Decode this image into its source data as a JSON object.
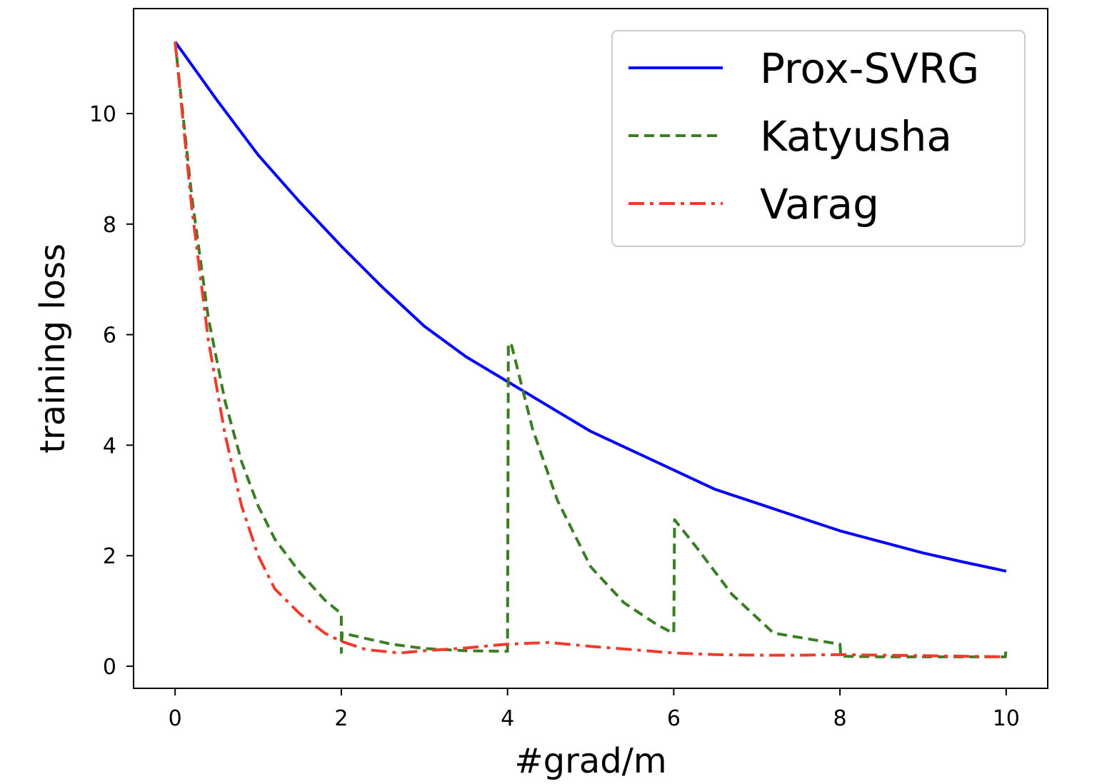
{
  "chart_data": {
    "type": "line",
    "title": "",
    "xlabel": "#grad/m",
    "ylabel": "training loss",
    "xlim": [
      -0.5,
      10.5
    ],
    "ylim": [
      -0.4,
      11.9
    ],
    "xticks": [
      0,
      2,
      4,
      6,
      8,
      10
    ],
    "yticks": [
      0,
      2,
      4,
      6,
      8,
      10
    ],
    "grid": false,
    "legend_position": "top-right",
    "series": [
      {
        "name": "Prox-SVRG",
        "color": "#0000ff",
        "style": "solid",
        "x": [
          0,
          0.5,
          1,
          1.5,
          2,
          2.5,
          3,
          3.5,
          4,
          4.5,
          5,
          5.5,
          6,
          6.5,
          7,
          7.5,
          8,
          8.5,
          9,
          9.5,
          10
        ],
        "y": [
          11.3,
          10.25,
          9.25,
          8.4,
          7.6,
          6.85,
          6.15,
          5.6,
          5.15,
          4.7,
          4.25,
          3.9,
          3.55,
          3.2,
          2.95,
          2.7,
          2.45,
          2.25,
          2.05,
          1.88,
          1.72
        ]
      },
      {
        "name": "Katyusha",
        "color": "#3a7d22",
        "style": "dashed",
        "x": [
          0,
          0.2,
          0.4,
          0.6,
          0.8,
          1.0,
          1.2,
          1.5,
          1.8,
          2.0,
          2.0,
          2.01,
          2.3,
          2.6,
          3.0,
          3.5,
          3.99,
          4.0,
          4.01,
          4.05,
          4.3,
          4.6,
          5.0,
          5.4,
          5.8,
          5.99,
          6.0,
          6.01,
          6.3,
          6.7,
          7.2,
          7.99,
          8.0,
          8.01,
          8.5,
          9.0,
          9.5,
          9.99,
          10.0
        ],
        "y": [
          11.3,
          8.5,
          6.3,
          4.8,
          3.7,
          2.9,
          2.3,
          1.7,
          1.2,
          0.95,
          0.25,
          0.6,
          0.5,
          0.4,
          0.32,
          0.28,
          0.27,
          0.27,
          5.85,
          5.8,
          4.3,
          3.0,
          1.8,
          1.15,
          0.75,
          0.6,
          0.6,
          2.65,
          2.1,
          1.3,
          0.6,
          0.4,
          0.4,
          0.18,
          0.17,
          0.17,
          0.17,
          0.17,
          0.35
        ]
      },
      {
        "name": "Varag",
        "color": "#ee3b2b",
        "style": "dashdot",
        "x": [
          0,
          0.2,
          0.4,
          0.6,
          0.8,
          1.0,
          1.2,
          1.5,
          1.8,
          2.0,
          2.3,
          2.7,
          3.0,
          3.5,
          4.0,
          4.5,
          5.0,
          5.5,
          6.0,
          6.5,
          7.0,
          7.5,
          8.0,
          8.5,
          9.0,
          9.5,
          10.0
        ],
        "y": [
          11.3,
          8.3,
          5.9,
          4.2,
          2.9,
          2.0,
          1.4,
          0.95,
          0.6,
          0.45,
          0.3,
          0.24,
          0.28,
          0.33,
          0.4,
          0.43,
          0.36,
          0.3,
          0.24,
          0.21,
          0.2,
          0.2,
          0.21,
          0.2,
          0.19,
          0.18,
          0.17
        ]
      }
    ]
  }
}
